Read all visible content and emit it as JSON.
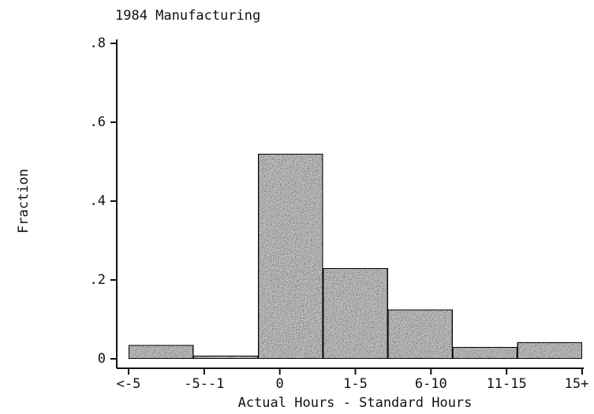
{
  "chart_data": {
    "type": "bar",
    "title": "1984 Manufacturing",
    "xlabel": "Actual Hours - Standard Hours",
    "ylabel": "Fraction",
    "categories": [
      "<-5",
      "-5--1",
      "0",
      "1-5",
      "6-10",
      "11-15",
      "15+"
    ],
    "values": [
      0.035,
      0.008,
      0.52,
      0.23,
      0.125,
      0.03,
      0.042
    ],
    "color": "#c4c4c4",
    "ylim": [
      0,
      0.8
    ],
    "yticks": [
      0,
      {
        "value": 0.2,
        "label": ".2"
      },
      {
        "value": 0.4,
        "label": ".4"
      },
      {
        "value": 0.6,
        "label": ".6"
      },
      {
        "value": 0.8,
        "label": ".8"
      }
    ],
    "grid": false
  }
}
